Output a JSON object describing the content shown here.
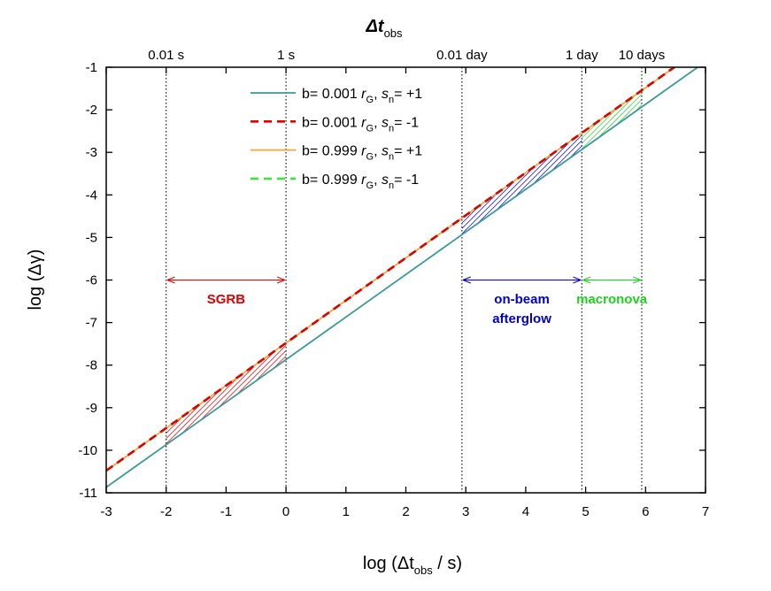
{
  "chart_data": {
    "type": "line",
    "xlabel": "log (Δt",
    "xlabel_sub": "obs",
    "xlabel_end": " / s)",
    "ylabel": "log (Δγ)",
    "top_axis_title": "Δt",
    "top_axis_title_sub": "obs",
    "xlim": [
      -3,
      7
    ],
    "ylim": [
      -11,
      -1
    ],
    "x_ticks": [
      -3,
      -2,
      -1,
      0,
      1,
      2,
      3,
      4,
      5,
      6,
      7
    ],
    "y_ticks": [
      -11,
      -10,
      -9,
      -8,
      -7,
      -6,
      -5,
      -4,
      -3,
      -2,
      -1
    ],
    "top_ticks": [
      {
        "label": "0.01 s",
        "x": -2
      },
      {
        "label": "1 s",
        "x": 0
      },
      {
        "label": "0.01 day",
        "x": 2.936
      },
      {
        "label": "1 day",
        "x": 4.936
      },
      {
        "label": "10 days",
        "x": 5.936
      }
    ],
    "series": [
      {
        "name": "b= 0.001 r_G, s_n= +1",
        "color": "#3a9a9a",
        "dash": "solid",
        "x": [
          -3,
          7
        ],
        "y": [
          -10.87,
          -0.87
        ]
      },
      {
        "name": "b= 0.001 r_G, s_n= -1",
        "color": "#e00000",
        "dash": "dashed",
        "x": [
          -3,
          6.62
        ],
        "y": [
          -10.48,
          -0.86
        ]
      },
      {
        "name": "b= 0.999 r_G, s_n= +1",
        "color": "#ffa040",
        "dash": "solid",
        "x": [
          -3,
          6.62
        ],
        "y": [
          -10.48,
          -0.86
        ]
      },
      {
        "name": "b= 0.999 r_G, s_n= -1",
        "color": "#40e040",
        "dash": "dashed",
        "x": [
          -3,
          6.62
        ],
        "y": [
          -10.48,
          -0.86
        ]
      }
    ],
    "legend_entries": [
      {
        "pre": "b= 0.001 ",
        "r": "r",
        "rsub": "G",
        "mid": ", ",
        "s": "s",
        "ssub": "n",
        "post": "= +1"
      },
      {
        "pre": "b= 0.001 ",
        "r": "r",
        "rsub": "G",
        "mid": ", ",
        "s": "s",
        "ssub": "n",
        "post": "= -1"
      },
      {
        "pre": "b= 0.999 ",
        "r": "r",
        "rsub": "G",
        "mid": ", ",
        "s": "s",
        "ssub": "n",
        "post": "= +1"
      },
      {
        "pre": "b= 0.999 ",
        "r": "r",
        "rsub": "G",
        "mid": ", ",
        "s": "s",
        "ssub": "n",
        "post": "= -1"
      }
    ],
    "regions": [
      {
        "name": "SGRB",
        "label": [
          "SGRB"
        ],
        "x_range": [
          -2,
          0
        ],
        "arrow_y": -6,
        "label_y": -6.45,
        "color": "#e00000"
      },
      {
        "name": "on-beam afterglow",
        "label": [
          "on-beam",
          "afterglow"
        ],
        "x_range": [
          2.936,
          4.936
        ],
        "arrow_y": -6,
        "label_y": -6.45,
        "color": "#0000cc"
      },
      {
        "name": "macronova",
        "label": [
          "macronova"
        ],
        "x_range": [
          4.936,
          5.936
        ],
        "arrow_y": -6,
        "label_y": -6.45,
        "color": "#20d020"
      }
    ],
    "vertical_lines": [
      -2,
      0,
      2.936,
      4.936,
      5.936
    ],
    "colors": {
      "axis": "#000000",
      "sgrb": "#e00000",
      "afterglow": "#0000cc",
      "macronova": "#20d020"
    }
  }
}
